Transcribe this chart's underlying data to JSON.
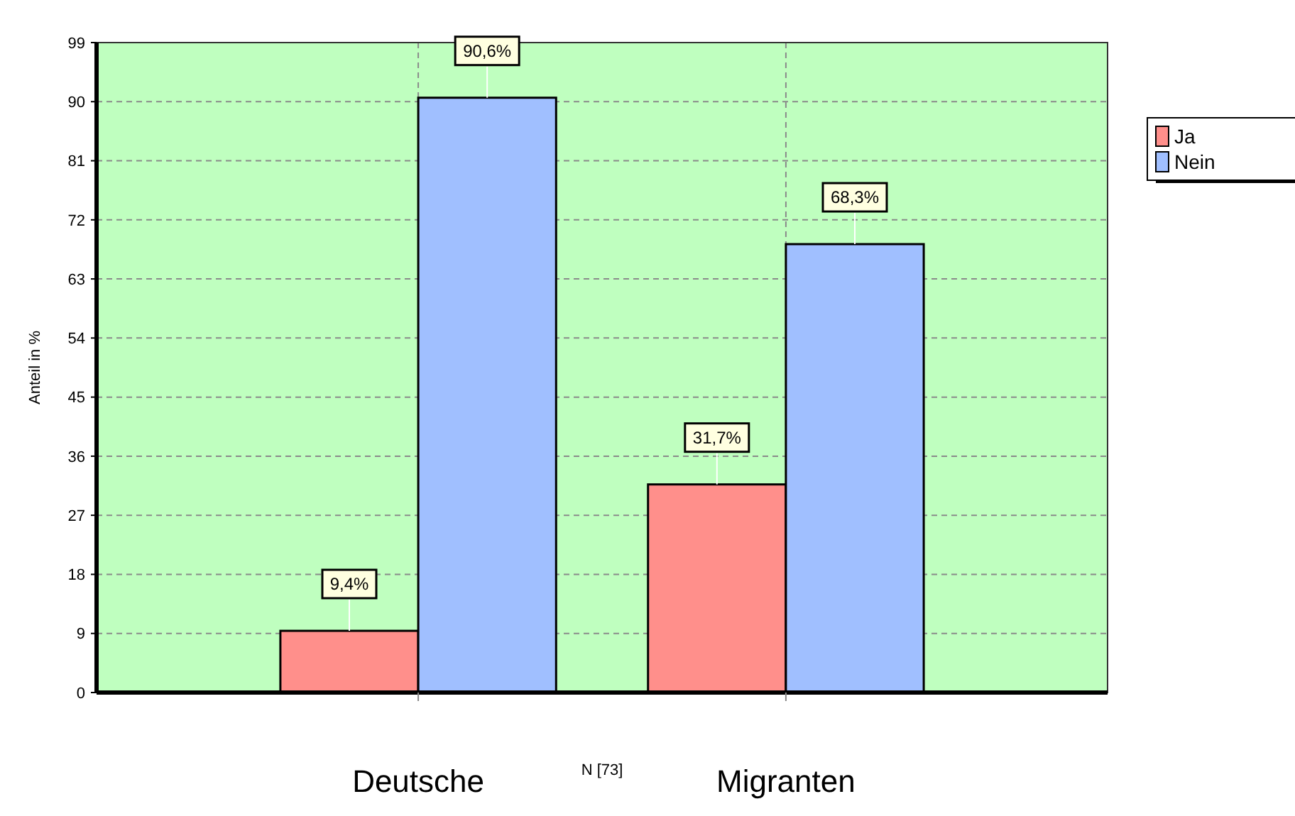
{
  "chart_data": {
    "type": "bar",
    "ylabel": "Anteil in %",
    "xlabel": "N [73]",
    "categories": [
      "Deutsche",
      "Migranten"
    ],
    "series": [
      {
        "name": "Ja",
        "color": "#ff8f8b",
        "values": [
          9.4,
          31.7
        ],
        "value_labels": [
          "9,4%",
          "31,7%"
        ]
      },
      {
        "name": "Nein",
        "color": "#a0bfff",
        "values": [
          90.6,
          68.3
        ],
        "value_labels": [
          "90,6%",
          "68,3%"
        ]
      }
    ],
    "ylim": [
      0,
      99
    ],
    "yticks": [
      0,
      9,
      18,
      27,
      36,
      45,
      54,
      63,
      72,
      81,
      90,
      99
    ],
    "grid": true,
    "legend": "top right"
  }
}
